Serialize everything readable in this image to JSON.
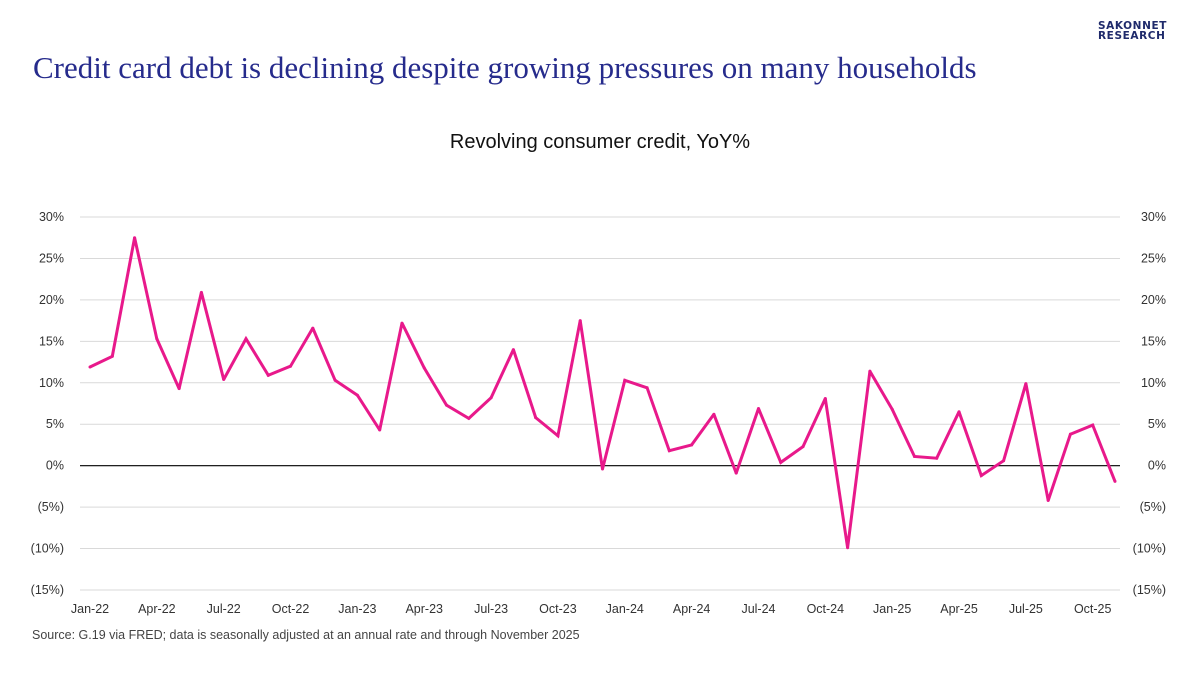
{
  "logo": {
    "line1": "SAKONNET",
    "line2": "RESEARCH"
  },
  "headline": "Credit card debt is declining despite growing pressures on many households",
  "source": "Source: G.19 via FRED; data is seasonally adjusted at an annual rate and through November 2025",
  "colors": {
    "headline": "#262b8c",
    "series": "#e8198b",
    "grid": "#d9d9d9",
    "zero_line": "#000000",
    "logo": "#1f2a6b"
  },
  "chart_data": {
    "type": "line",
    "title": "Revolving consumer credit, YoY%",
    "xlabel": "",
    "ylabel": "",
    "ylim": [
      -15,
      30
    ],
    "y_ticks": [
      30,
      25,
      20,
      15,
      10,
      5,
      0,
      -5,
      -10,
      -15
    ],
    "y_tick_labels": [
      "30%",
      "25%",
      "20%",
      "15%",
      "10%",
      "5%",
      "0%",
      "(5%)",
      "(10%)",
      "(15%)"
    ],
    "secondary_axis": true,
    "grid": true,
    "x_tick_labels": [
      "Jan-22",
      "Apr-22",
      "Jul-22",
      "Oct-22",
      "Jan-23",
      "Apr-23",
      "Jul-23",
      "Oct-23",
      "Jan-24",
      "Apr-24",
      "Jul-24",
      "Oct-24",
      "Jan-25",
      "Apr-25",
      "Jul-25",
      "Oct-25"
    ],
    "x": [
      "Jan-22",
      "Feb-22",
      "Mar-22",
      "Apr-22",
      "May-22",
      "Jun-22",
      "Jul-22",
      "Aug-22",
      "Sep-22",
      "Oct-22",
      "Nov-22",
      "Dec-22",
      "Jan-23",
      "Feb-23",
      "Mar-23",
      "Apr-23",
      "May-23",
      "Jun-23",
      "Jul-23",
      "Aug-23",
      "Sep-23",
      "Oct-23",
      "Nov-23",
      "Dec-23",
      "Jan-24",
      "Feb-24",
      "Mar-24",
      "Apr-24",
      "May-24",
      "Jun-24",
      "Jul-24",
      "Aug-24",
      "Sep-24",
      "Oct-24",
      "Nov-24",
      "Dec-24",
      "Jan-25",
      "Feb-25",
      "Mar-25",
      "Apr-25",
      "May-25",
      "Jun-25",
      "Jul-25",
      "Aug-25",
      "Sep-25",
      "Oct-25",
      "Nov-25"
    ],
    "series": [
      {
        "values": [
          11.9,
          13.2,
          27.5,
          15.3,
          9.3,
          20.9,
          10.4,
          15.3,
          10.9,
          12.0,
          16.6,
          10.3,
          8.5,
          4.3,
          17.2,
          11.8,
          7.3,
          5.7,
          8.2,
          14.0,
          5.8,
          3.6,
          17.5,
          -0.4,
          10.3,
          9.4,
          1.8,
          2.5,
          6.2,
          -0.9,
          6.9,
          0.4,
          2.3,
          8.1,
          -9.9,
          11.4,
          6.8,
          1.1,
          0.9,
          6.5,
          -1.2,
          0.6,
          9.9,
          -4.2,
          3.8,
          4.9,
          -1.9
        ]
      }
    ]
  }
}
